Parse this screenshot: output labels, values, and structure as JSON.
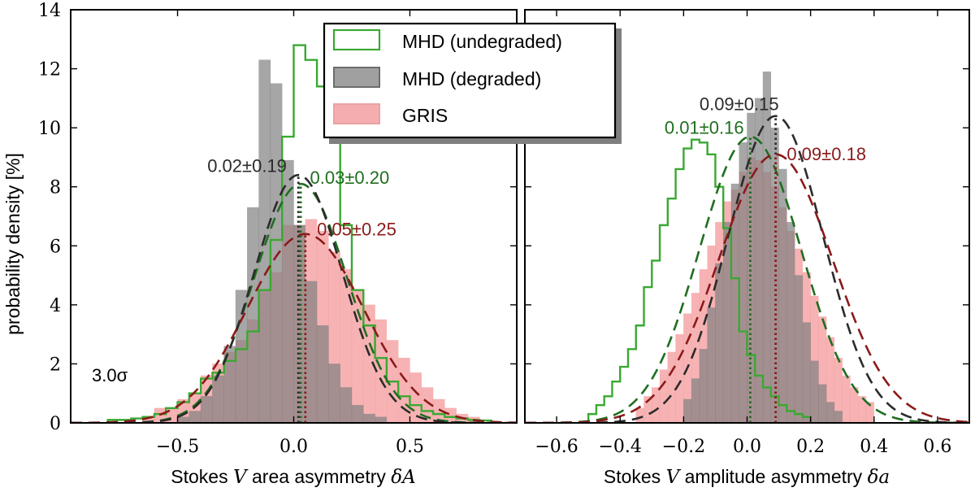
{
  "figure": {
    "ylabel": "probability density [%]",
    "sigma_label": "3.0σ",
    "legend": [
      {
        "name": "MHD (undegraded)",
        "color": "#3aa832",
        "style": "outline"
      },
      {
        "name": "MHD (degraded)",
        "color": "#808080",
        "style": "filled"
      },
      {
        "name": "GRIS",
        "color": "#f4999b",
        "style": "filled"
      }
    ]
  },
  "chart_data": [
    {
      "type": "histogram",
      "xlabel_prefix": "Stokes ",
      "xlabel_var": "V",
      "xlabel_mid": " area asymmetry ",
      "xlabel_sym": "δA",
      "xlim": [
        -0.96,
        0.96
      ],
      "ylim": [
        0,
        14
      ],
      "xticks": [
        -0.5,
        0.0,
        0.5
      ],
      "xtick_labels": [
        "−0.5",
        "0.0",
        "0.5"
      ],
      "yticks": [
        0,
        2,
        4,
        6,
        8,
        10,
        12,
        14
      ],
      "bin_width": 0.05,
      "series": [
        {
          "name": "GRIS",
          "color": "#f4999b",
          "opacity": 0.75,
          "style": "filled",
          "x_start": -0.65,
          "values": [
            0.2,
            0.5,
            0.5,
            0.8,
            1.0,
            1.6,
            2.0,
            2.4,
            2.8,
            3.5,
            4.5,
            5.1,
            6.7,
            6.7,
            6.9,
            6.5,
            5.8,
            5.2,
            4.5,
            4.0,
            3.5,
            2.8,
            2.2,
            1.7,
            1.2,
            0.8,
            0.5,
            0.3,
            0.2
          ]
        },
        {
          "name": "MHD (degraded)",
          "color": "#808080",
          "opacity": 0.7,
          "style": "filled",
          "x_start": -0.5,
          "values": [
            0.2,
            0.4,
            0.9,
            1.6,
            2.6,
            4.5,
            7.3,
            12.3,
            11.5,
            8.9,
            6.7,
            4.8,
            3.3,
            2.0,
            1.2,
            0.6,
            0.3,
            0.2
          ]
        },
        {
          "name": "MHD (undegraded)",
          "color": "#3aa832",
          "style": "step",
          "x_start": -0.8,
          "values": [
            0.1,
            0.1,
            0.15,
            0.2,
            0.3,
            0.5,
            0.7,
            1.0,
            1.5,
            1.7,
            2.1,
            2.5,
            3.1,
            4.5,
            6.2,
            9.7,
            12.8,
            12.3,
            11.4,
            9.7,
            6.7,
            4.5,
            3.3,
            2.2,
            1.4,
            0.9,
            0.6,
            0.4,
            0.3,
            0.2,
            0.15,
            0.1,
            0.08
          ]
        }
      ],
      "fits": [
        {
          "name": "MHD (undegraded)",
          "color": "#1f6e1f",
          "mu": 0.03,
          "sigma": 0.2,
          "peak": 8.1,
          "label": "0.03±0.20",
          "label_x": 0.07,
          "label_y": 8.1
        },
        {
          "name": "MHD (degraded)",
          "color": "#2b2b2b",
          "mu": 0.02,
          "sigma": 0.19,
          "peak": 8.4,
          "label": "0.02±0.19",
          "label_x": -0.03,
          "label_y": 8.5,
          "label_anchor": "end"
        },
        {
          "name": "GRIS",
          "color": "#8b1a1a",
          "mu": 0.05,
          "sigma": 0.25,
          "peak": 6.4,
          "label": "0.05±0.25",
          "label_x": 0.1,
          "label_y": 6.35
        }
      ]
    },
    {
      "type": "histogram",
      "xlabel_prefix": "Stokes ",
      "xlabel_var": "V",
      "xlabel_mid": " amplitude asymmetry ",
      "xlabel_sym": "δa",
      "xlim": [
        -0.7,
        0.7
      ],
      "ylim": [
        0,
        14
      ],
      "xticks": [
        -0.6,
        -0.4,
        -0.2,
        0.0,
        0.2,
        0.4,
        0.6
      ],
      "xtick_labels": [
        "−0.6",
        "−0.4",
        "−0.2",
        "0.0",
        "0.2",
        "0.4",
        "0.6"
      ],
      "yticks": [
        0,
        2,
        4,
        6,
        8,
        10,
        12,
        14
      ],
      "bin_width": 0.025,
      "series": [
        {
          "name": "GRIS",
          "color": "#f4999b",
          "opacity": 0.75,
          "style": "filled",
          "x_start": -0.35,
          "values": [
            0.5,
            0.9,
            1.2,
            1.8,
            2.4,
            3.0,
            3.7,
            4.4,
            5.2,
            6.0,
            6.8,
            7.5,
            7.9,
            8.5,
            9.0,
            8.9,
            8.5,
            8.0,
            7.3,
            6.5,
            5.9,
            5.1,
            4.3,
            3.6,
            2.9,
            2.2,
            1.6,
            1.2,
            0.9,
            0.7
          ]
        },
        {
          "name": "MHD (degraded)",
          "color": "#808080",
          "opacity": 0.7,
          "style": "filled",
          "x_start": -0.2,
          "values": [
            0.8,
            1.5,
            2.5,
            3.9,
            5.4,
            6.8,
            8.1,
            9.5,
            10.5,
            11.0,
            11.9,
            10.0,
            8.6,
            6.8,
            5.0,
            3.4,
            2.1,
            1.3,
            0.7,
            0.4
          ]
        },
        {
          "name": "MHD (undegraded)",
          "color": "#3aa832",
          "style": "step",
          "x_start": -0.5,
          "values": [
            0.3,
            0.6,
            0.9,
            1.4,
            1.9,
            2.5,
            3.3,
            4.6,
            5.5,
            6.7,
            7.6,
            8.6,
            9.3,
            9.6,
            9.5,
            9.1,
            8.0,
            6.6,
            4.9,
            3.1,
            2.3,
            1.6,
            1.2,
            0.9,
            0.6,
            0.4,
            0.3,
            0.2
          ]
        }
      ],
      "fits": [
        {
          "name": "MHD (undegraded)",
          "color": "#1f6e1f",
          "mu": 0.01,
          "sigma": 0.16,
          "peak": 9.7,
          "label": "0.01±0.16",
          "label_x": -0.01,
          "label_y": 9.8,
          "label_anchor": "end"
        },
        {
          "name": "MHD (degraded)",
          "color": "#2b2b2b",
          "mu": 0.09,
          "sigma": 0.15,
          "peak": 10.4,
          "label": "0.09±0.15",
          "label_x": 0.1,
          "label_y": 10.6,
          "label_anchor": "end"
        },
        {
          "name": "GRIS",
          "color": "#8b1a1a",
          "mu": 0.09,
          "sigma": 0.18,
          "peak": 9.1,
          "label": "0.09±0.18",
          "label_x": 0.125,
          "label_y": 8.9
        }
      ]
    }
  ]
}
